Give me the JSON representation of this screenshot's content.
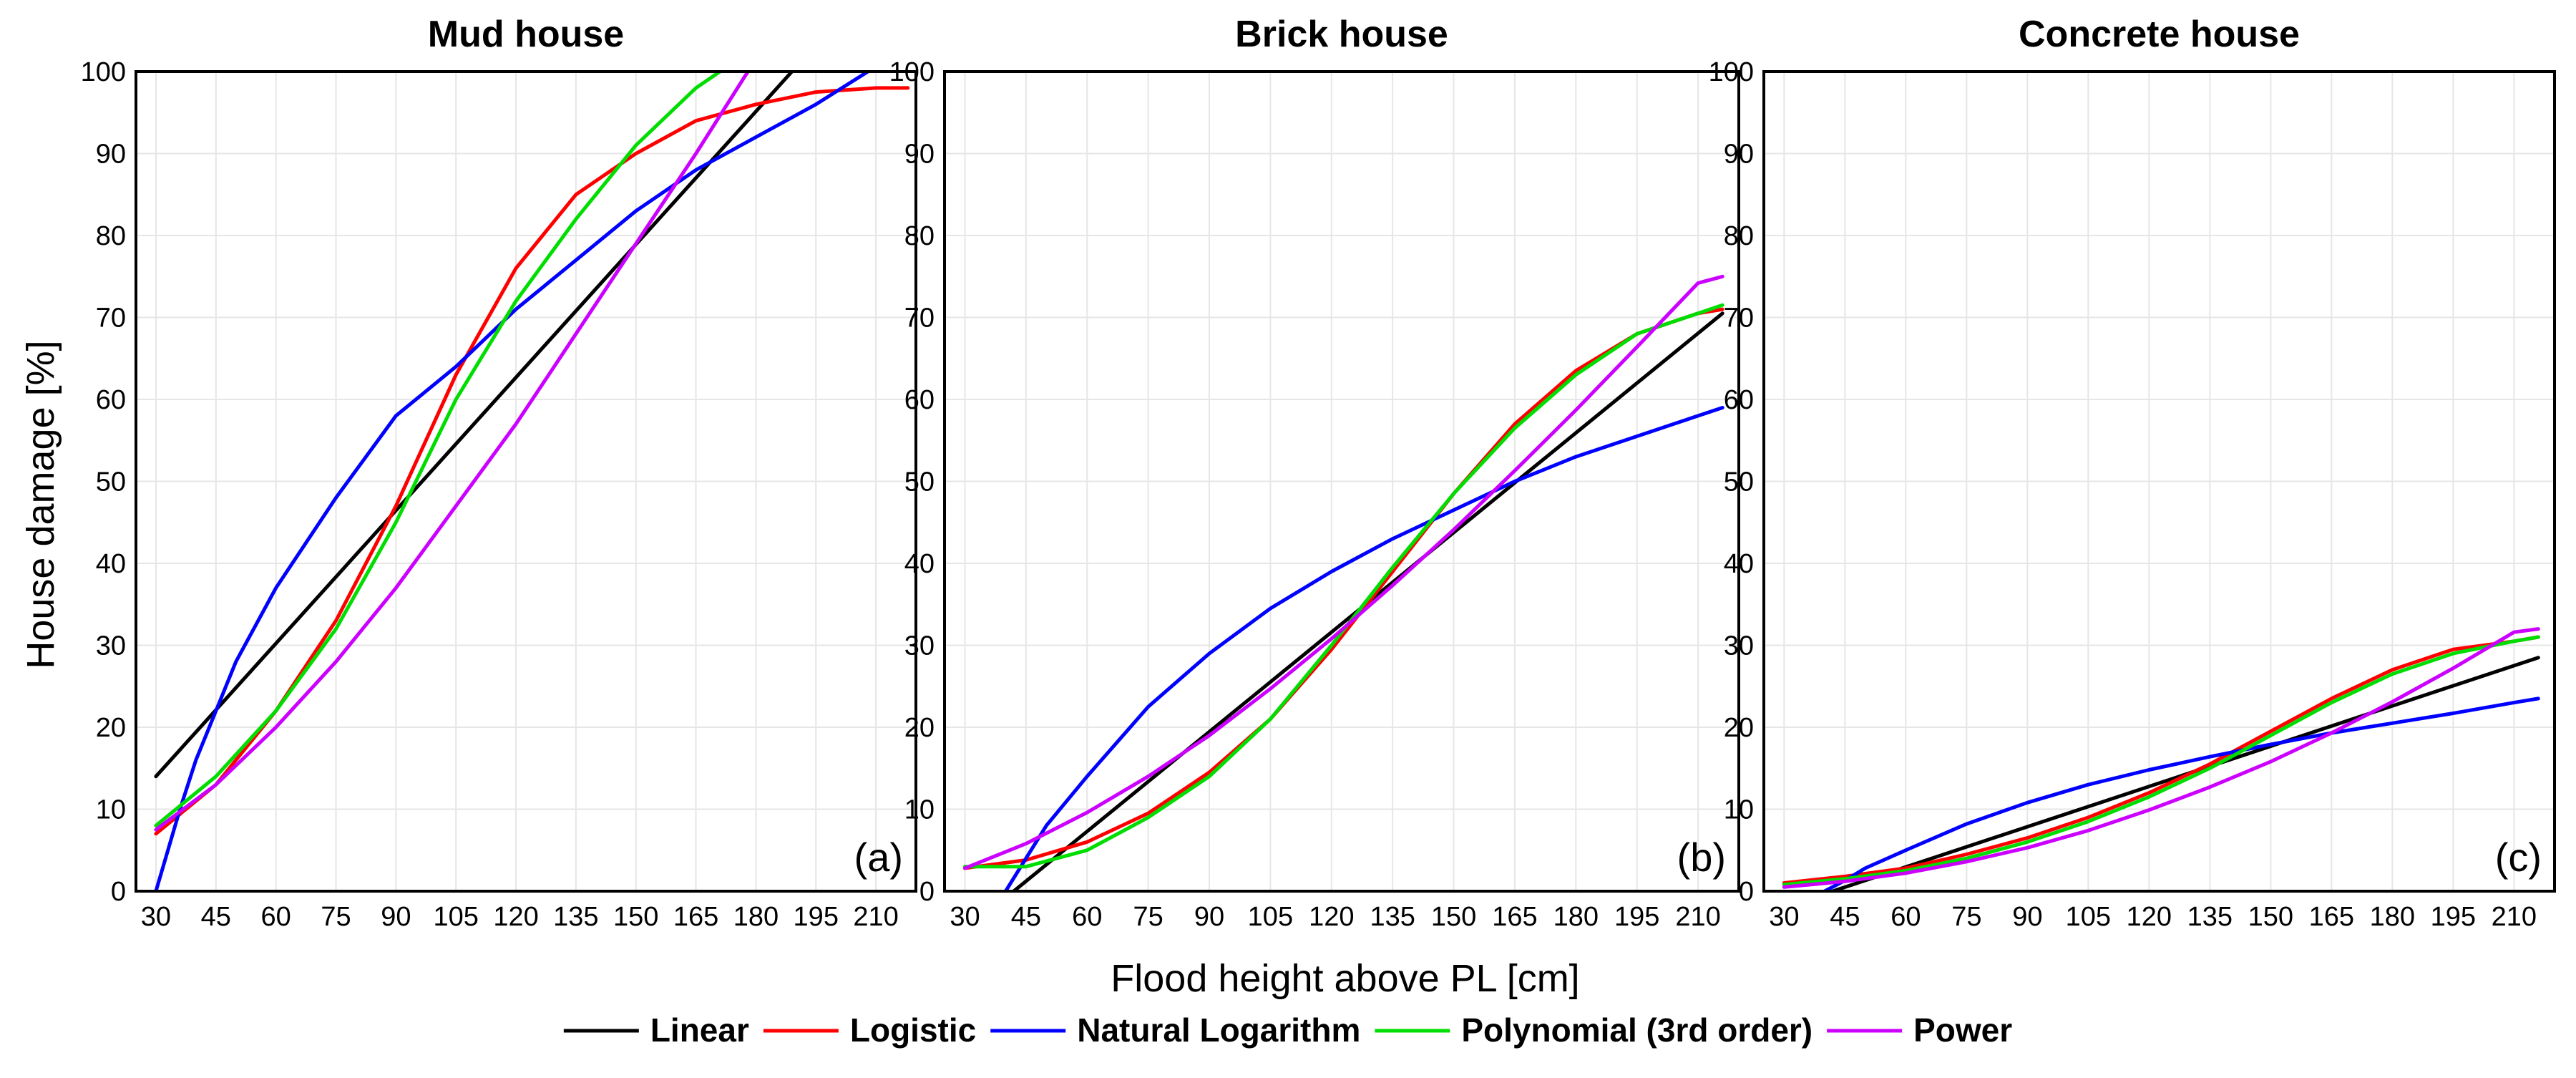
{
  "chart_data": [
    {
      "type": "line",
      "title": "Mud house",
      "panel_label": "(a)",
      "xlabel": "Flood height above PL [cm]",
      "ylabel": "House damage [%]",
      "xlim": [
        25,
        220
      ],
      "ylim": [
        0,
        100
      ],
      "xticks": [
        30,
        45,
        60,
        75,
        90,
        105,
        120,
        135,
        150,
        165,
        180,
        195,
        210
      ],
      "yticks": [
        0,
        10,
        20,
        30,
        40,
        50,
        60,
        70,
        80,
        90,
        100
      ],
      "grid": true,
      "series": [
        {
          "name": "Linear",
          "color": "#000000",
          "x": [
            30,
            189
          ],
          "y": [
            14,
            100
          ]
        },
        {
          "name": "Logistic",
          "color": "#ff0000",
          "x": [
            30,
            45,
            60,
            75,
            90,
            105,
            120,
            135,
            150,
            165,
            180,
            195,
            210,
            218
          ],
          "y": [
            7,
            13,
            22,
            33,
            47,
            63,
            76,
            85,
            90,
            94,
            96,
            97.5,
            98,
            98
          ]
        },
        {
          "name": "Natural Logarithm",
          "color": "#0000ff",
          "x": [
            30,
            33,
            36,
            40,
            45,
            50,
            60,
            75,
            90,
            105,
            120,
            135,
            150,
            165,
            180,
            195,
            208
          ],
          "y": [
            0,
            5,
            10,
            16,
            22,
            28,
            37,
            48,
            58,
            64,
            71,
            77,
            83,
            88,
            92,
            96,
            100
          ]
        },
        {
          "name": "Polynomial (3rd order)",
          "color": "#00dd00",
          "x": [
            30,
            45,
            60,
            75,
            90,
            105,
            120,
            135,
            150,
            165,
            171
          ],
          "y": [
            8,
            14,
            22,
            32,
            45,
            60,
            72,
            82,
            91,
            98,
            100
          ]
        },
        {
          "name": "Power",
          "color": "#cc00ff",
          "x": [
            30,
            45,
            60,
            75,
            90,
            105,
            120,
            135,
            150,
            165,
            178
          ],
          "y": [
            7.5,
            13,
            20,
            28,
            37,
            47,
            57,
            68,
            79,
            90,
            100
          ]
        }
      ]
    },
    {
      "type": "line",
      "title": "Brick house",
      "panel_label": "(b)",
      "xlabel": "Flood height above PL [cm]",
      "ylabel": "",
      "xlim": [
        25,
        220
      ],
      "ylim": [
        0,
        100
      ],
      "xticks": [
        30,
        45,
        60,
        75,
        90,
        105,
        120,
        135,
        150,
        165,
        180,
        195,
        210
      ],
      "yticks": [
        0,
        10,
        20,
        30,
        40,
        50,
        60,
        70,
        80,
        90,
        100
      ],
      "grid": true,
      "series": [
        {
          "name": "Linear",
          "color": "#000000",
          "x": [
            42,
            216
          ],
          "y": [
            0,
            70.5
          ]
        },
        {
          "name": "Logistic",
          "color": "#ff0000",
          "x": [
            30,
            45,
            60,
            75,
            90,
            105,
            120,
            135,
            150,
            165,
            180,
            195,
            210,
            216
          ],
          "y": [
            2.8,
            3.8,
            6,
            9.5,
            14.5,
            21,
            29.5,
            39,
            48.5,
            57,
            63.5,
            68,
            70.5,
            71
          ]
        },
        {
          "name": "Natural Logarithm",
          "color": "#0000ff",
          "x": [
            40,
            45,
            50,
            60,
            75,
            90,
            105,
            120,
            135,
            150,
            165,
            180,
            195,
            210,
            216
          ],
          "y": [
            0,
            4,
            8,
            14,
            22.5,
            29,
            34.5,
            39,
            43,
            46.5,
            50,
            53,
            55.5,
            58,
            59
          ]
        },
        {
          "name": "Polynomial (3rd order)",
          "color": "#00dd00",
          "x": [
            30,
            45,
            60,
            75,
            90,
            105,
            120,
            135,
            150,
            165,
            180,
            195,
            210,
            216
          ],
          "y": [
            3,
            3,
            5,
            9,
            14,
            21,
            30,
            39.5,
            48.5,
            56.5,
            63,
            68,
            70.5,
            71.5
          ]
        },
        {
          "name": "Power",
          "color": "#cc00ff",
          "x": [
            30,
            45,
            60,
            75,
            90,
            105,
            120,
            135,
            150,
            165,
            180,
            195,
            210,
            216
          ],
          "y": [
            2.8,
            5.8,
            9.6,
            14,
            19,
            24.7,
            30.8,
            37.3,
            44.1,
            51.3,
            58.7,
            66.4,
            74.2,
            75
          ]
        }
      ]
    },
    {
      "type": "line",
      "title": "Concrete house",
      "panel_label": "(c)",
      "xlabel": "Flood height above PL [cm]",
      "ylabel": "",
      "xlim": [
        25,
        220
      ],
      "ylim": [
        0,
        100
      ],
      "xticks": [
        30,
        45,
        60,
        75,
        90,
        105,
        120,
        135,
        150,
        165,
        180,
        195,
        210
      ],
      "yticks": [
        0,
        10,
        20,
        30,
        40,
        50,
        60,
        70,
        80,
        90,
        100
      ],
      "grid": true,
      "series": [
        {
          "name": "Linear",
          "color": "#000000",
          "x": [
            42,
            216
          ],
          "y": [
            0,
            28.5
          ]
        },
        {
          "name": "Logistic",
          "color": "#ff0000",
          "x": [
            30,
            45,
            60,
            75,
            90,
            105,
            120,
            135,
            150,
            165,
            180,
            195,
            210,
            216
          ],
          "y": [
            1,
            1.8,
            2.8,
            4.5,
            6.5,
            9,
            12,
            15.5,
            19.5,
            23.5,
            27,
            29.5,
            30.5,
            31
          ]
        },
        {
          "name": "Natural Logarithm",
          "color": "#0000ff",
          "x": [
            40,
            45,
            50,
            60,
            75,
            90,
            105,
            120,
            135,
            150,
            165,
            180,
            195,
            210,
            216
          ],
          "y": [
            0,
            1.3,
            2.8,
            5,
            8.2,
            10.8,
            13,
            14.8,
            16.4,
            17.9,
            19.3,
            20.5,
            21.7,
            23,
            23.5
          ]
        },
        {
          "name": "Polynomial (3rd order)",
          "color": "#00dd00",
          "x": [
            30,
            45,
            60,
            75,
            90,
            105,
            120,
            135,
            150,
            165,
            180,
            195,
            210,
            216
          ],
          "y": [
            0.8,
            1.5,
            2.5,
            4,
            6,
            8.5,
            11.5,
            15,
            19,
            23,
            26.5,
            29,
            30.5,
            31
          ]
        },
        {
          "name": "Power",
          "color": "#cc00ff",
          "x": [
            30,
            45,
            60,
            75,
            90,
            105,
            120,
            135,
            150,
            165,
            180,
            195,
            210,
            216
          ],
          "y": [
            0.5,
            1.2,
            2.2,
            3.6,
            5.3,
            7.4,
            9.9,
            12.7,
            15.8,
            19.3,
            23.1,
            27.2,
            31.6,
            32
          ]
        }
      ]
    }
  ],
  "legend": {
    "position": "bottom-center",
    "items": [
      {
        "label": "Linear",
        "color": "#000000"
      },
      {
        "label": "Logistic",
        "color": "#ff0000"
      },
      {
        "label": "Natural Logarithm",
        "color": "#0000ff"
      },
      {
        "label": "Polynomial (3rd order)",
        "color": "#00dd00"
      },
      {
        "label": "Power",
        "color": "#cc00ff"
      }
    ]
  }
}
